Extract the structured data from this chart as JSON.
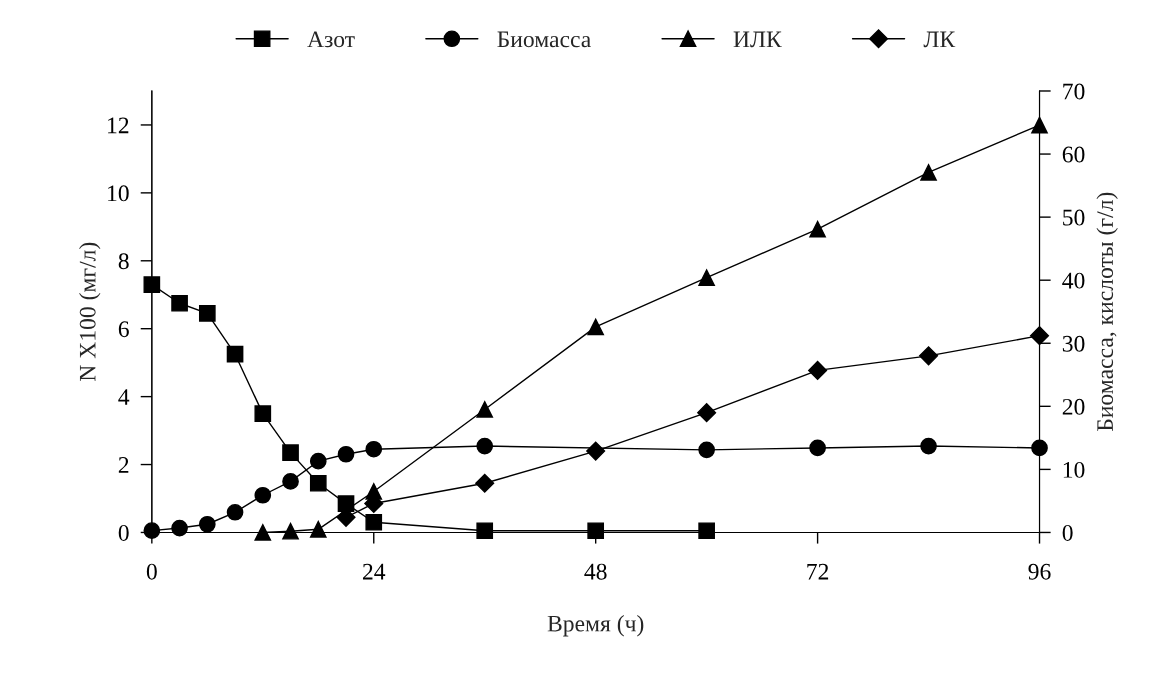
{
  "chart_data": {
    "type": "line",
    "xlabel": "Время (ч)",
    "ylabel": "N X100 (мг/л)",
    "y2label": "Биомасса, кислоты (г/л)",
    "xlim": [
      0,
      96
    ],
    "xticks": [
      0,
      24,
      48,
      72,
      96
    ],
    "ylim": [
      0,
      13
    ],
    "yticks": [
      0,
      2,
      4,
      6,
      8,
      10,
      12
    ],
    "y2lim": [
      0,
      70
    ],
    "y2ticks": [
      0,
      10,
      20,
      30,
      40,
      50,
      60,
      70
    ],
    "legend": "top",
    "grid": false,
    "series": [
      {
        "name": "Азот",
        "color": "#000000",
        "marker": "square",
        "x": [
          0,
          3,
          6,
          9,
          12,
          15,
          18,
          21,
          24,
          36,
          48,
          60
        ],
        "values": [
          7.3,
          6.75,
          6.45,
          5.25,
          3.5,
          2.35,
          1.45,
          0.85,
          0.3,
          0.05,
          0.05,
          0.05
        ]
      },
      {
        "name": "Биомасса",
        "color": "#000000",
        "marker": "circle",
        "axis": "y2",
        "x": [
          0,
          3,
          6,
          9,
          12,
          15,
          18,
          21,
          24,
          36,
          60,
          72,
          84,
          96
        ],
        "values": [
          0.3,
          0.7,
          1.3,
          3.2,
          5.9,
          8.1,
          11.3,
          12.4,
          13.2,
          13.7,
          13.1,
          13.4,
          13.7,
          13.4
        ]
      },
      {
        "name": "ИЛК",
        "color": "#000000",
        "marker": "triangle",
        "axis": "y2",
        "x": [
          12,
          15,
          18,
          24,
          36,
          48,
          60,
          72,
          84,
          96
        ],
        "values": [
          0,
          0.2,
          0.5,
          6.5,
          19.5,
          32.6,
          40.4,
          48.1,
          57.1,
          64.6
        ]
      },
      {
        "name": "ЛК",
        "color": "#000000",
        "marker": "diamond",
        "axis": "y2",
        "x": [
          21,
          24,
          36,
          48,
          60,
          72,
          84,
          96
        ],
        "values": [
          2.4,
          4.6,
          7.8,
          12.9,
          19,
          25.7,
          28,
          31.2
        ]
      }
    ]
  }
}
